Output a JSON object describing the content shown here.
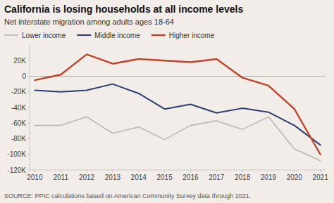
{
  "chart_data": {
    "type": "line",
    "title": "California is losing households at all income levels",
    "subtitle": "Net interstate migration among adults ages 18-64",
    "source": "SOURCE: PPIC calculations based on American Community Survey data through 2021.",
    "x": [
      2010,
      2011,
      2012,
      2013,
      2014,
      2015,
      2016,
      2017,
      2018,
      2019,
      2020,
      2021
    ],
    "xlim": [
      2009.8,
      2021.2
    ],
    "xticks": [
      2010,
      2011,
      2012,
      2013,
      2014,
      2015,
      2016,
      2017,
      2018,
      2019,
      2020,
      2021
    ],
    "ylim": [
      -120000,
      40000
    ],
    "yticks": [
      {
        "value": -120000,
        "label": "-120K"
      },
      {
        "value": -100000,
        "label": "-100K"
      },
      {
        "value": -80000,
        "label": "-80K"
      },
      {
        "value": -60000,
        "label": "-60K"
      },
      {
        "value": -40000,
        "label": "-40K"
      },
      {
        "value": -20000,
        "label": "-20K"
      },
      0,
      {
        "value": 20000,
        "label": "20K"
      }
    ],
    "grid": false,
    "legend": "top",
    "series": [
      {
        "name": "Lower income",
        "color": "#b8b8b8",
        "values": [
          -63000,
          -63000,
          -52000,
          -73000,
          -65000,
          -81000,
          -63000,
          -57000,
          -68000,
          -52000,
          -93000,
          -108000
        ]
      },
      {
        "name": "Middle income",
        "color": "#2c3e6e",
        "values": [
          -18000,
          -20000,
          -18000,
          -10000,
          -22000,
          -42000,
          -36000,
          -47000,
          -41000,
          -46000,
          -63000,
          -88000
        ]
      },
      {
        "name": "Higher income",
        "color": "#c0432a",
        "values": [
          -5000,
          2000,
          28000,
          16000,
          22000,
          20000,
          18000,
          22000,
          -2000,
          -12000,
          -42000,
          -100000
        ]
      }
    ]
  }
}
